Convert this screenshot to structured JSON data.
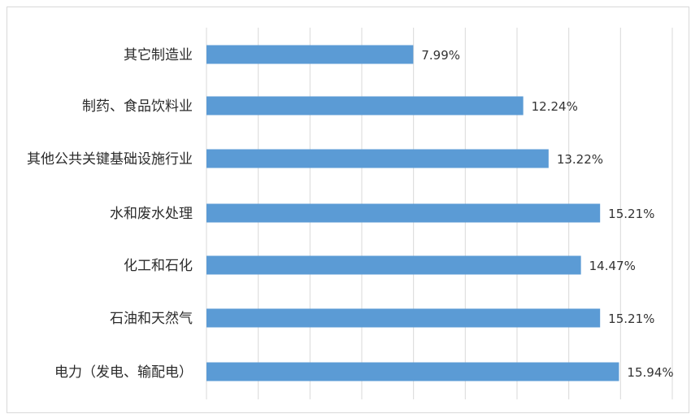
{
  "chart_data": {
    "type": "bar",
    "orientation": "horizontal",
    "categories": [
      "其它制造业",
      "制药、食品饮料业",
      "其他公共关键基础设施行业",
      "水和废水处理",
      "化工和石化",
      "石油和天然气",
      "电力（发电、输配电）"
    ],
    "values": [
      7.99,
      12.24,
      13.22,
      15.21,
      14.47,
      15.21,
      15.94
    ],
    "value_labels": [
      "7.99%",
      "12.24%",
      "13.22%",
      "15.21%",
      "14.47%",
      "15.21%",
      "15.94%"
    ],
    "xlim": [
      0,
      18
    ],
    "grid": true,
    "bar_color": "#5b9bd5"
  }
}
